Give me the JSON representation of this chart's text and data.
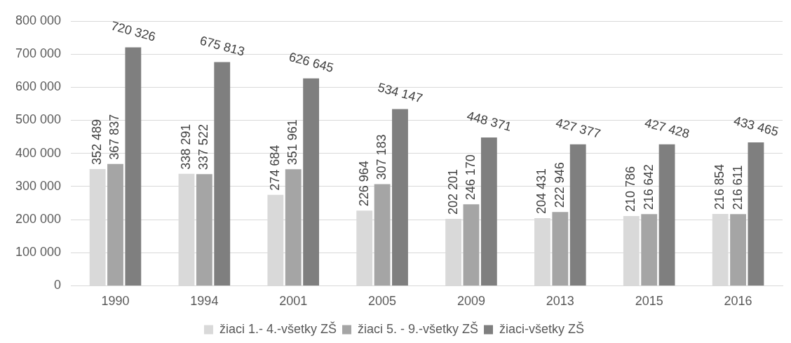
{
  "chart_data": {
    "type": "bar",
    "categories": [
      "1990",
      "1994",
      "2001",
      "2005",
      "2009",
      "2013",
      "2015",
      "2016"
    ],
    "series": [
      {
        "name": "žiaci 1.- 4.-všetky ZŠ",
        "color": "#d9d9d9",
        "values": [
          352489,
          338291,
          274684,
          226964,
          202201,
          204431,
          210786,
          216854
        ]
      },
      {
        "name": "žiaci 5. - 9.-všetky ZŠ",
        "color": "#a5a5a5",
        "values": [
          367837,
          337522,
          351961,
          307183,
          246170,
          222946,
          216642,
          216611
        ]
      },
      {
        "name": "žiaci-všetky ZŠ",
        "color": "#7f7f7f",
        "values": [
          720326,
          675813,
          626645,
          534147,
          448371,
          427377,
          427428,
          433465
        ]
      }
    ],
    "ylim": [
      0,
      800000
    ],
    "yticks": [
      {
        "value": 0,
        "label": "0"
      },
      {
        "value": 100000,
        "label": "100 000"
      },
      {
        "value": 200000,
        "label": "200 000"
      },
      {
        "value": 300000,
        "label": "300 000"
      },
      {
        "value": 400000,
        "label": "400 000"
      },
      {
        "value": 500000,
        "label": "500 000"
      },
      {
        "value": 600000,
        "label": "600 000"
      },
      {
        "value": 700000,
        "label": "700 000"
      },
      {
        "value": 800000,
        "label": "800 000"
      }
    ],
    "grid": "y",
    "legend": "bottom",
    "data_labels": true
  }
}
